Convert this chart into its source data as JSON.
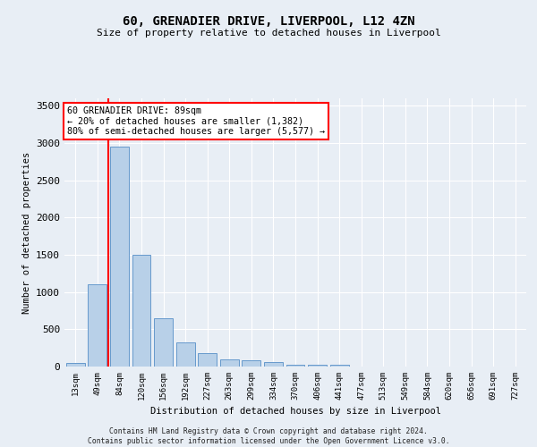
{
  "title_line1": "60, GRENADIER DRIVE, LIVERPOOL, L12 4ZN",
  "title_line2": "Size of property relative to detached houses in Liverpool",
  "xlabel": "Distribution of detached houses by size in Liverpool",
  "ylabel": "Number of detached properties",
  "categories": [
    "13sqm",
    "49sqm",
    "84sqm",
    "120sqm",
    "156sqm",
    "192sqm",
    "227sqm",
    "263sqm",
    "299sqm",
    "334sqm",
    "370sqm",
    "406sqm",
    "441sqm",
    "477sqm",
    "513sqm",
    "549sqm",
    "584sqm",
    "620sqm",
    "656sqm",
    "691sqm",
    "727sqm"
  ],
  "values": [
    50,
    1100,
    2950,
    1500,
    650,
    330,
    180,
    100,
    85,
    55,
    30,
    30,
    25,
    0,
    0,
    0,
    0,
    0,
    0,
    0,
    0
  ],
  "bar_color": "#b8d0e8",
  "bar_edge_color": "#6699cc",
  "red_line_x": 1.5,
  "annotation_text": "60 GRENADIER DRIVE: 89sqm\n← 20% of detached houses are smaller (1,382)\n80% of semi-detached houses are larger (5,577) →",
  "annotation_box_color": "white",
  "annotation_box_edge_color": "red",
  "ylim": [
    0,
    3600
  ],
  "yticks": [
    0,
    500,
    1000,
    1500,
    2000,
    2500,
    3000,
    3500
  ],
  "bg_color": "#e8eef5",
  "grid_color": "white",
  "footnote": "Contains HM Land Registry data © Crown copyright and database right 2024.\nContains public sector information licensed under the Open Government Licence v3.0."
}
